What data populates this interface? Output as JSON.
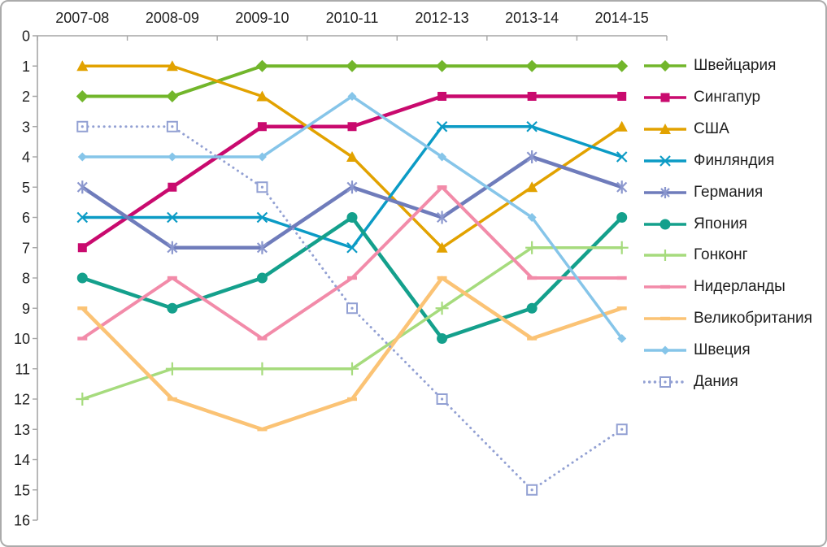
{
  "frame": {
    "background": "#FFFFFF",
    "border_color": "#ABABAB"
  },
  "chart_data": {
    "type": "line",
    "title": "",
    "description": "Country ranking positions per period (rank 1 = top, y-axis inverted)",
    "categories": [
      "2007-08",
      "2008-09",
      "2009-10",
      "2010-11",
      "2012-13",
      "2013-14",
      "2014-15"
    ],
    "xlabel": "",
    "ylabel": "",
    "y_axis": {
      "min": 0,
      "max": 16,
      "step": 1,
      "inverted": true,
      "tick_labels": [
        "0",
        "1",
        "2",
        "3",
        "4",
        "5",
        "6",
        "7",
        "8",
        "9",
        "10",
        "11",
        "12",
        "13",
        "14",
        "15",
        "16"
      ]
    },
    "grid": false,
    "legend_position": "right",
    "axis_color": "#A6A6A6",
    "label_color": "#1F1F1F",
    "series": [
      {
        "key": "switzerland",
        "name": "Швейцария",
        "color": "#72B62B",
        "marker": "diamond",
        "marker_size": 7.5,
        "line_width": 4,
        "line_style": "solid",
        "values": [
          2,
          2,
          1,
          1,
          1,
          1,
          1
        ]
      },
      {
        "key": "singapore",
        "name": "Сингапур",
        "color": "#C90A6E",
        "marker": "square",
        "marker_size": 5.5,
        "line_width": 4.5,
        "line_style": "solid",
        "values": [
          7,
          5,
          3,
          3,
          2,
          2,
          2
        ]
      },
      {
        "key": "usa",
        "name": "США",
        "color": "#E2A200",
        "marker": "triangle",
        "marker_size": 7,
        "line_width": 3.5,
        "line_style": "solid",
        "values": [
          1,
          1,
          2,
          4,
          7,
          5,
          3
        ]
      },
      {
        "key": "finland",
        "name": "Финляндия",
        "color": "#0B9BC5",
        "marker": "x",
        "marker_size": 6,
        "line_width": 3.5,
        "line_style": "solid",
        "values": [
          6,
          6,
          6,
          7,
          3,
          3,
          4
        ]
      },
      {
        "key": "germany",
        "name": "Германия",
        "color": "#6F7CBB",
        "marker": "asterisk",
        "marker_color": "#8B97CE",
        "marker_size": 8,
        "line_width": 4.5,
        "line_style": "solid",
        "values": [
          5,
          7,
          7,
          5,
          6,
          4,
          5
        ]
      },
      {
        "key": "japan",
        "name": "Япония",
        "color": "#14A08C",
        "marker": "circle",
        "marker_size": 6.5,
        "line_width": 4.5,
        "line_style": "solid",
        "values": [
          8,
          9,
          8,
          6,
          10,
          9,
          6
        ]
      },
      {
        "key": "hong-kong",
        "name": "Гонконг",
        "color": "#A6DB7D",
        "marker": "plus",
        "marker_size": 8,
        "line_width": 3.5,
        "line_style": "solid",
        "values": [
          12,
          11,
          11,
          11,
          9,
          7,
          7
        ]
      },
      {
        "key": "netherlands",
        "name": "Нидерланды",
        "color": "#F28BA9",
        "marker": "dash",
        "marker_size": 6,
        "line_width": 4,
        "line_style": "solid",
        "values": [
          10,
          8,
          10,
          8,
          5,
          8,
          8
        ]
      },
      {
        "key": "uk",
        "name": "Великобритания",
        "color": "#FBC375",
        "marker": "dash",
        "marker_size": 6,
        "line_width": 4.5,
        "line_style": "solid",
        "values": [
          9,
          12,
          13,
          12,
          8,
          10,
          9
        ]
      },
      {
        "key": "sweden",
        "name": "Швеция",
        "color": "#86C5E9",
        "marker": "diamond",
        "marker_size": 5.5,
        "line_width": 3.5,
        "line_style": "solid",
        "values": [
          4,
          4,
          4,
          2,
          4,
          6,
          10
        ]
      },
      {
        "key": "denmark",
        "name": "Дания",
        "color": "#92A0D3",
        "marker": "open-square-dot",
        "marker_size": 6,
        "line_width": 3,
        "line_style": "dotted",
        "values": [
          3,
          3,
          5,
          9,
          12,
          15,
          13
        ]
      }
    ]
  }
}
